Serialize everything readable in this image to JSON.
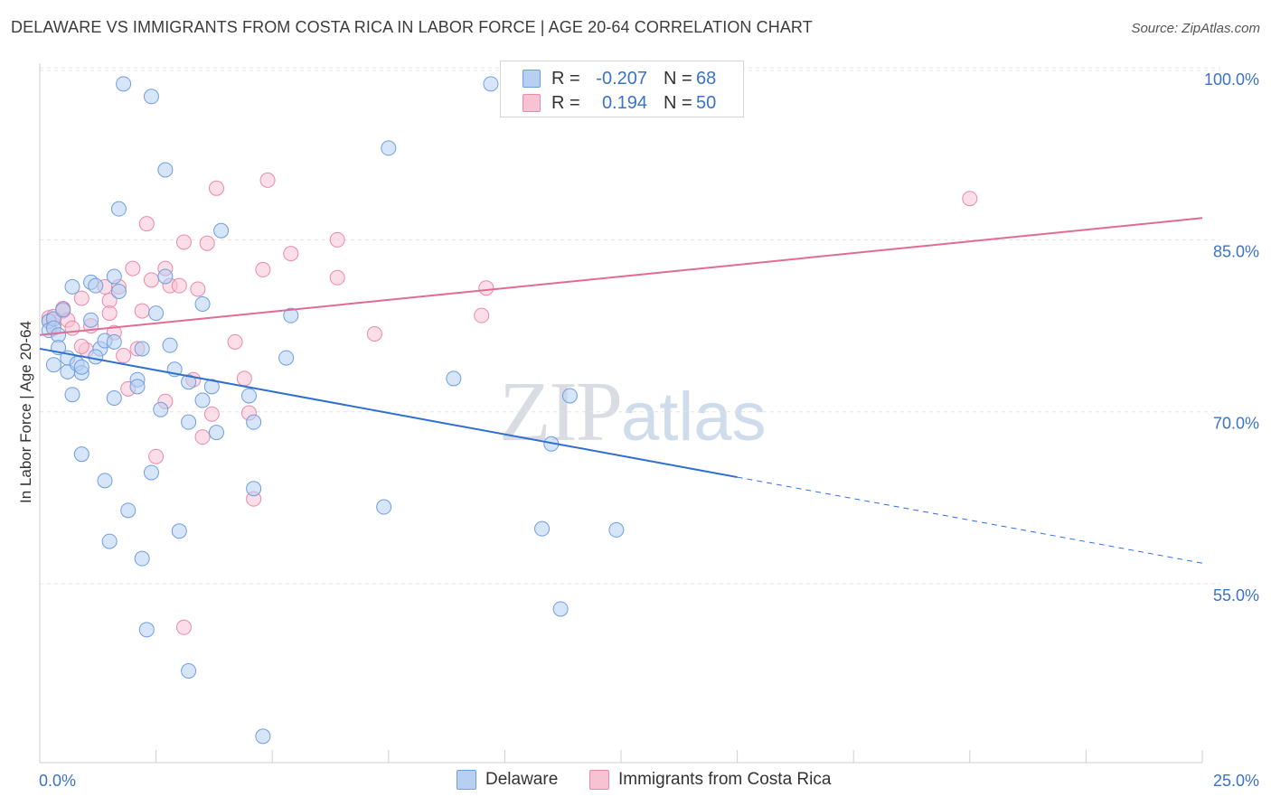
{
  "title": "DELAWARE VS IMMIGRANTS FROM COSTA RICA IN LABOR FORCE | AGE 20-64 CORRELATION CHART",
  "source": "Source: ZipAtlas.com",
  "watermark": {
    "zip": "ZIP",
    "atlas": "atlas"
  },
  "colors": {
    "delaware_fill": "#b7d0f2",
    "delaware_stroke": "#6e9ee0",
    "delaware_line": "#2f6fce",
    "costa_fill": "#f7c3d3",
    "costa_stroke": "#ea8aa8",
    "costa_line": "#e16b94",
    "tick_label": "#3a73c9",
    "grid": "#e3e3e3"
  },
  "legend": {
    "delaware": {
      "r_label": "R =",
      "r_value": "-0.207",
      "n_label": "N =",
      "n_value": "68"
    },
    "costa": {
      "r_label": "R =",
      "r_value": "0.194",
      "n_label": "N =",
      "n_value": "50"
    }
  },
  "chart_data": {
    "type": "scatter",
    "title": "DELAWARE VS IMMIGRANTS FROM COSTA RICA IN LABOR FORCE | AGE 20-64 CORRELATION CHART",
    "xlabel": "",
    "ylabel": "In Labor Force | Age 20-64",
    "xlim": [
      0,
      25
    ],
    "ylim": [
      40.5,
      101.5
    ],
    "x_tick_labels": [
      {
        "x": 0,
        "label": "0.0%"
      },
      {
        "x": 25,
        "label": "25.0%"
      }
    ],
    "y_tick_labels": [
      {
        "y": 100,
        "label": "100.0%"
      },
      {
        "y": 85,
        "label": "85.0%"
      },
      {
        "y": 70,
        "label": "70.0%"
      },
      {
        "y": 55,
        "label": "55.0%"
      }
    ],
    "series": [
      {
        "name": "Delaware",
        "r": -0.207,
        "n": 68,
        "trend": {
          "x0": 0,
          "y0": 76.6,
          "x1": 15,
          "y1": 65.4,
          "dashed_to_x": 25,
          "dashed_to_y": 57.9
        },
        "points": [
          [
            0.2,
            79.0
          ],
          [
            0.2,
            78.2
          ],
          [
            0.3,
            79.2
          ],
          [
            0.3,
            78.4
          ],
          [
            0.4,
            77.8
          ],
          [
            0.4,
            76.7
          ],
          [
            0.5,
            80.0
          ],
          [
            0.3,
            75.2
          ],
          [
            0.6,
            74.6
          ],
          [
            0.6,
            75.8
          ],
          [
            0.8,
            75.3
          ],
          [
            0.9,
            74.5
          ],
          [
            0.7,
            72.6
          ],
          [
            0.9,
            75.0
          ],
          [
            0.7,
            82.0
          ],
          [
            1.1,
            82.4
          ],
          [
            1.2,
            82.1
          ],
          [
            1.1,
            79.1
          ],
          [
            1.3,
            76.6
          ],
          [
            1.2,
            75.9
          ],
          [
            1.4,
            77.3
          ],
          [
            1.6,
            77.2
          ],
          [
            1.6,
            82.9
          ],
          [
            1.7,
            81.6
          ],
          [
            1.6,
            72.3
          ],
          [
            2.1,
            73.9
          ],
          [
            2.1,
            73.3
          ],
          [
            2.2,
            76.6
          ],
          [
            2.5,
            79.7
          ],
          [
            2.6,
            71.3
          ],
          [
            2.7,
            82.9
          ],
          [
            2.8,
            76.9
          ],
          [
            2.9,
            74.8
          ],
          [
            3.2,
            70.2
          ],
          [
            3.2,
            73.7
          ],
          [
            3.5,
            80.5
          ],
          [
            3.5,
            72.1
          ],
          [
            3.7,
            73.3
          ],
          [
            3.8,
            69.3
          ],
          [
            3.9,
            86.9
          ],
          [
            4.5,
            72.5
          ],
          [
            4.6,
            64.4
          ],
          [
            5.3,
            75.8
          ],
          [
            5.4,
            79.5
          ],
          [
            1.7,
            88.8
          ],
          [
            1.8,
            99.7
          ],
          [
            2.4,
            98.6
          ],
          [
            2.7,
            92.2
          ],
          [
            0.9,
            67.4
          ],
          [
            1.4,
            65.1
          ],
          [
            1.9,
            62.5
          ],
          [
            1.5,
            59.8
          ],
          [
            2.2,
            58.3
          ],
          [
            2.4,
            65.8
          ],
          [
            3.0,
            60.7
          ],
          [
            2.3,
            52.1
          ],
          [
            3.2,
            48.5
          ],
          [
            4.8,
            42.8
          ],
          [
            7.4,
            62.8
          ],
          [
            7.5,
            94.1
          ],
          [
            8.9,
            74.0
          ],
          [
            9.7,
            99.7
          ],
          [
            10.8,
            60.9
          ],
          [
            11.0,
            68.3
          ],
          [
            11.4,
            72.5
          ],
          [
            12.4,
            60.8
          ],
          [
            11.2,
            53.9
          ],
          [
            4.6,
            70.2
          ]
        ]
      },
      {
        "name": "Immigrants from Costa Rica",
        "r": 0.194,
        "n": 50,
        "trend": {
          "x0": 0,
          "y0": 77.8,
          "x1": 25,
          "y1": 88.0
        },
        "points": [
          [
            0.2,
            79.3
          ],
          [
            0.2,
            79.0
          ],
          [
            0.3,
            78.7
          ],
          [
            0.3,
            79.4
          ],
          [
            0.5,
            79.9
          ],
          [
            0.5,
            80.1
          ],
          [
            0.6,
            79.1
          ],
          [
            0.7,
            78.4
          ],
          [
            0.9,
            81.0
          ],
          [
            1.0,
            76.5
          ],
          [
            1.1,
            78.6
          ],
          [
            1.4,
            82.0
          ],
          [
            1.5,
            80.8
          ],
          [
            1.5,
            79.7
          ],
          [
            1.6,
            78.0
          ],
          [
            1.7,
            82.0
          ],
          [
            1.8,
            76.0
          ],
          [
            1.9,
            73.1
          ],
          [
            2.0,
            83.6
          ],
          [
            2.1,
            76.6
          ],
          [
            2.2,
            79.9
          ],
          [
            2.3,
            87.5
          ],
          [
            2.4,
            82.6
          ],
          [
            2.5,
            67.2
          ],
          [
            2.7,
            83.6
          ],
          [
            2.7,
            72.0
          ],
          [
            2.8,
            82.1
          ],
          [
            3.0,
            82.1
          ],
          [
            3.1,
            85.9
          ],
          [
            3.3,
            73.9
          ],
          [
            3.4,
            81.8
          ],
          [
            3.5,
            68.9
          ],
          [
            3.6,
            85.8
          ],
          [
            3.7,
            70.9
          ],
          [
            3.8,
            90.6
          ],
          [
            4.2,
            77.2
          ],
          [
            4.4,
            74.0
          ],
          [
            4.5,
            71.0
          ],
          [
            4.6,
            63.5
          ],
          [
            4.8,
            83.5
          ],
          [
            4.9,
            91.3
          ],
          [
            5.4,
            84.9
          ],
          [
            6.4,
            82.8
          ],
          [
            6.4,
            86.1
          ],
          [
            7.2,
            77.9
          ],
          [
            3.1,
            52.3
          ],
          [
            9.5,
            79.5
          ],
          [
            9.6,
            81.9
          ],
          [
            20.0,
            89.7
          ],
          [
            0.9,
            76.8
          ]
        ]
      }
    ]
  },
  "bottom_legend": [
    "Delaware",
    "Immigrants from Costa Rica"
  ]
}
